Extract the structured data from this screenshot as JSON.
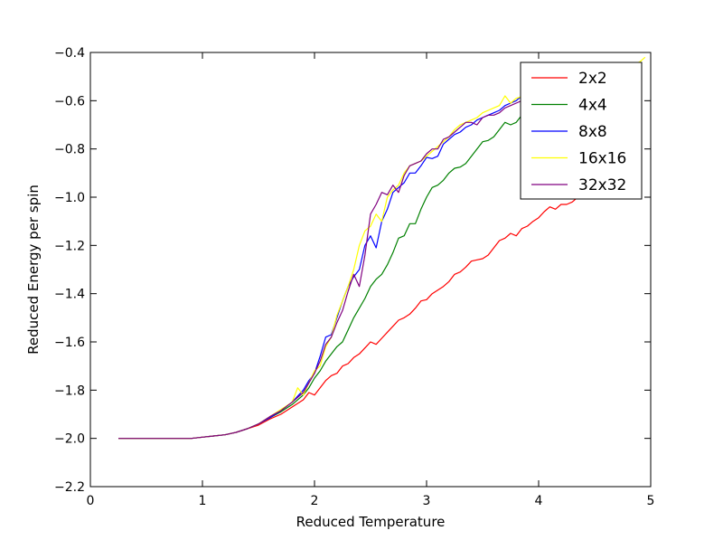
{
  "chart_data": {
    "type": "line",
    "title": "",
    "xlabel": "Reduced Temperature",
    "ylabel": "Reduced Energy per spin",
    "xlim": [
      0,
      5
    ],
    "ylim": [
      -2.2,
      -0.4
    ],
    "xticks": [
      0,
      1,
      2,
      3,
      4,
      5
    ],
    "xtick_labels": [
      "0",
      "1",
      "2",
      "3",
      "4",
      "5"
    ],
    "yticks": [
      -2.2,
      -2.0,
      -1.8,
      -1.6,
      -1.4,
      -1.2,
      -1.0,
      -0.8,
      -0.6,
      -0.4
    ],
    "ytick_labels": [
      "−2.2",
      "−2.0",
      "−1.8",
      "−1.6",
      "−1.4",
      "−1.2",
      "−1.0",
      "−0.8",
      "−0.6",
      "−0.4"
    ],
    "grid": false,
    "legend_position": "top-right",
    "series": [
      {
        "name": "2x2",
        "color": "#ff0000",
        "x": [
          0.25,
          0.5,
          0.75,
          0.9,
          1.0,
          1.1,
          1.2,
          1.3,
          1.4,
          1.5,
          1.6,
          1.7,
          1.8,
          1.9,
          1.95,
          2.0,
          2.05,
          2.1,
          2.15,
          2.2,
          2.25,
          2.3,
          2.35,
          2.4,
          2.45,
          2.5,
          2.55,
          2.6,
          2.65,
          2.7,
          2.75,
          2.8,
          2.85,
          2.9,
          2.95,
          3.0,
          3.05,
          3.1,
          3.15,
          3.2,
          3.25,
          3.3,
          3.35,
          3.4,
          3.45,
          3.5,
          3.55,
          3.6,
          3.65,
          3.7,
          3.75,
          3.8,
          3.85,
          3.9,
          3.95,
          4.0,
          4.05,
          4.1,
          4.15,
          4.2,
          4.25,
          4.3,
          4.35
        ],
        "values": [
          -2.0,
          -2.0,
          -2.0,
          -2.0,
          -1.995,
          -1.99,
          -1.985,
          -1.975,
          -1.96,
          -1.945,
          -1.92,
          -1.9,
          -1.87,
          -1.84,
          -1.81,
          -1.82,
          -1.79,
          -1.76,
          -1.74,
          -1.73,
          -1.7,
          -1.69,
          -1.665,
          -1.65,
          -1.625,
          -1.6,
          -1.61,
          -1.585,
          -1.56,
          -1.535,
          -1.51,
          -1.5,
          -1.485,
          -1.46,
          -1.43,
          -1.425,
          -1.4,
          -1.385,
          -1.37,
          -1.35,
          -1.32,
          -1.31,
          -1.29,
          -1.265,
          -1.26,
          -1.255,
          -1.24,
          -1.21,
          -1.18,
          -1.17,
          -1.15,
          -1.16,
          -1.13,
          -1.12,
          -1.1,
          -1.085,
          -1.06,
          -1.04,
          -1.05,
          -1.03,
          -1.03,
          -1.02,
          -1.0
        ]
      },
      {
        "name": "4x4",
        "color": "#008000",
        "x": [
          0.25,
          0.5,
          0.75,
          0.9,
          1.0,
          1.1,
          1.2,
          1.3,
          1.4,
          1.5,
          1.6,
          1.7,
          1.8,
          1.9,
          1.95,
          2.0,
          2.05,
          2.1,
          2.15,
          2.2,
          2.25,
          2.3,
          2.35,
          2.4,
          2.45,
          2.5,
          2.55,
          2.6,
          2.65,
          2.7,
          2.75,
          2.8,
          2.85,
          2.9,
          2.95,
          3.0,
          3.05,
          3.1,
          3.15,
          3.2,
          3.25,
          3.3,
          3.35,
          3.4,
          3.45,
          3.5,
          3.55,
          3.6,
          3.65,
          3.7,
          3.75,
          3.8,
          3.85
        ],
        "values": [
          -2.0,
          -2.0,
          -2.0,
          -2.0,
          -1.995,
          -1.99,
          -1.985,
          -1.975,
          -1.96,
          -1.94,
          -1.915,
          -1.89,
          -1.86,
          -1.82,
          -1.79,
          -1.75,
          -1.72,
          -1.68,
          -1.65,
          -1.62,
          -1.6,
          -1.55,
          -1.5,
          -1.46,
          -1.42,
          -1.37,
          -1.34,
          -1.32,
          -1.28,
          -1.23,
          -1.17,
          -1.16,
          -1.11,
          -1.11,
          -1.05,
          -1.0,
          -0.96,
          -0.95,
          -0.93,
          -0.9,
          -0.88,
          -0.875,
          -0.86,
          -0.83,
          -0.8,
          -0.77,
          -0.765,
          -0.75,
          -0.72,
          -0.69,
          -0.7,
          -0.69,
          -0.66
        ]
      },
      {
        "name": "8x8",
        "color": "#0000ff",
        "x": [
          0.25,
          0.5,
          0.75,
          0.9,
          1.0,
          1.1,
          1.2,
          1.3,
          1.4,
          1.5,
          1.6,
          1.7,
          1.8,
          1.9,
          1.95,
          2.0,
          2.05,
          2.1,
          2.15,
          2.2,
          2.25,
          2.3,
          2.35,
          2.4,
          2.45,
          2.5,
          2.55,
          2.6,
          2.65,
          2.7,
          2.75,
          2.8,
          2.85,
          2.9,
          2.95,
          3.0,
          3.05,
          3.1,
          3.15,
          3.2,
          3.25,
          3.3,
          3.35,
          3.4,
          3.45,
          3.5,
          3.55,
          3.6,
          3.65,
          3.7,
          3.75,
          3.8,
          3.85
        ],
        "values": [
          -2.0,
          -2.0,
          -2.0,
          -2.0,
          -1.995,
          -1.99,
          -1.985,
          -1.975,
          -1.96,
          -1.94,
          -1.915,
          -1.885,
          -1.85,
          -1.8,
          -1.76,
          -1.73,
          -1.66,
          -1.58,
          -1.57,
          -1.5,
          -1.43,
          -1.37,
          -1.33,
          -1.3,
          -1.2,
          -1.16,
          -1.21,
          -1.1,
          -1.05,
          -0.98,
          -0.96,
          -0.94,
          -0.9,
          -0.9,
          -0.87,
          -0.835,
          -0.84,
          -0.83,
          -0.78,
          -0.76,
          -0.74,
          -0.73,
          -0.71,
          -0.7,
          -0.68,
          -0.67,
          -0.66,
          -0.65,
          -0.64,
          -0.62,
          -0.61,
          -0.6,
          -0.58
        ]
      },
      {
        "name": "16x16",
        "color": "#ffff00",
        "x": [
          0.25,
          0.5,
          0.75,
          0.9,
          1.0,
          1.1,
          1.2,
          1.3,
          1.4,
          1.5,
          1.6,
          1.7,
          1.8,
          1.85,
          1.9,
          1.95,
          2.0,
          2.05,
          2.1,
          2.15,
          2.2,
          2.25,
          2.3,
          2.35,
          2.4,
          2.45,
          2.5,
          2.55,
          2.6,
          2.65,
          2.7,
          2.75,
          2.8,
          2.85,
          2.9,
          2.95,
          3.0,
          3.05,
          3.1,
          3.15,
          3.2,
          3.25,
          3.3,
          3.35,
          3.4,
          3.45,
          3.5,
          3.55,
          3.6,
          3.65,
          3.7,
          3.75,
          3.8,
          4.8,
          4.9,
          4.95
        ],
        "values": [
          -2.0,
          -2.0,
          -2.0,
          -2.0,
          -1.995,
          -1.99,
          -1.985,
          -1.975,
          -1.96,
          -1.94,
          -1.91,
          -1.88,
          -1.85,
          -1.79,
          -1.82,
          -1.77,
          -1.72,
          -1.7,
          -1.62,
          -1.58,
          -1.49,
          -1.43,
          -1.37,
          -1.3,
          -1.2,
          -1.14,
          -1.12,
          -1.07,
          -1.1,
          -1.0,
          -0.97,
          -0.95,
          -0.9,
          -0.87,
          -0.86,
          -0.85,
          -0.83,
          -0.81,
          -0.79,
          -0.77,
          -0.75,
          -0.72,
          -0.7,
          -0.69,
          -0.68,
          -0.67,
          -0.65,
          -0.64,
          -0.63,
          -0.62,
          -0.58,
          -0.61,
          -0.59,
          -0.45,
          -0.44,
          -0.42
        ]
      },
      {
        "name": "32x32",
        "color": "#800080",
        "x": [
          0.25,
          0.5,
          0.75,
          0.9,
          1.0,
          1.1,
          1.2,
          1.3,
          1.4,
          1.5,
          1.6,
          1.7,
          1.8,
          1.9,
          1.95,
          2.0,
          2.05,
          2.1,
          2.15,
          2.2,
          2.25,
          2.3,
          2.35,
          2.4,
          2.45,
          2.5,
          2.55,
          2.6,
          2.65,
          2.7,
          2.75,
          2.8,
          2.85,
          2.9,
          2.95,
          3.0,
          3.05,
          3.1,
          3.15,
          3.2,
          3.25,
          3.3,
          3.35,
          3.4,
          3.45,
          3.5,
          3.55,
          3.6,
          3.65,
          3.7,
          3.75,
          3.8,
          3.85
        ],
        "values": [
          -2.0,
          -2.0,
          -2.0,
          -2.0,
          -1.995,
          -1.99,
          -1.985,
          -1.975,
          -1.96,
          -1.94,
          -1.91,
          -1.885,
          -1.85,
          -1.81,
          -1.77,
          -1.73,
          -1.68,
          -1.61,
          -1.58,
          -1.52,
          -1.47,
          -1.39,
          -1.32,
          -1.37,
          -1.24,
          -1.07,
          -1.03,
          -0.98,
          -0.99,
          -0.95,
          -0.98,
          -0.91,
          -0.87,
          -0.86,
          -0.85,
          -0.82,
          -0.8,
          -0.8,
          -0.76,
          -0.75,
          -0.73,
          -0.71,
          -0.69,
          -0.69,
          -0.7,
          -0.67,
          -0.66,
          -0.66,
          -0.65,
          -0.63,
          -0.62,
          -0.61,
          -0.6
        ]
      }
    ]
  }
}
